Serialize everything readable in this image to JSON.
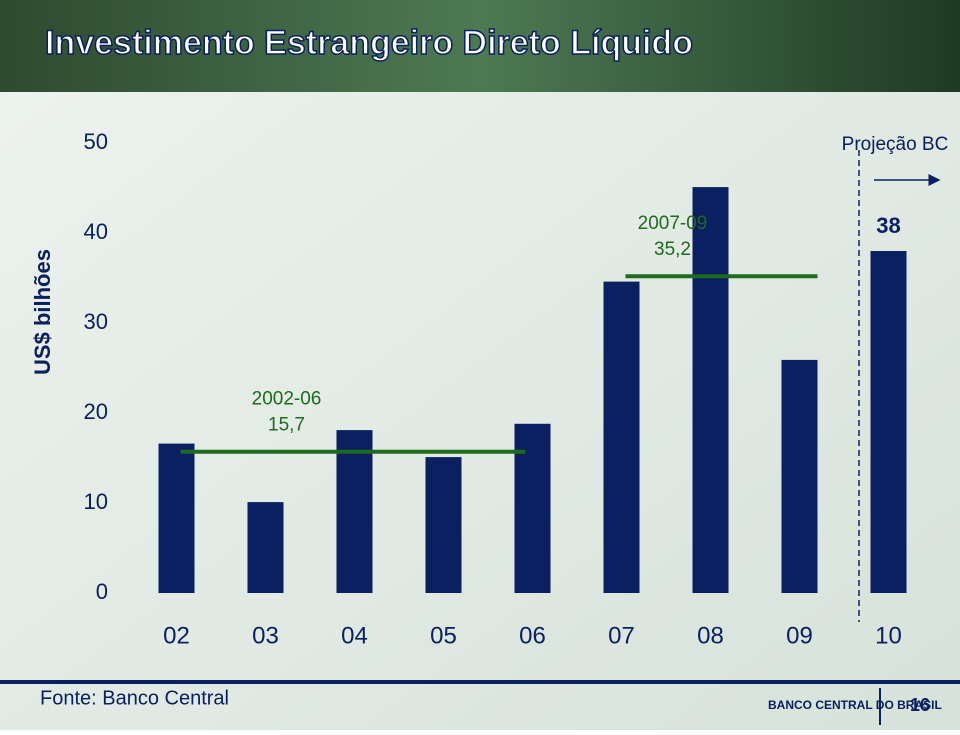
{
  "chart_data": {
    "type": "bar",
    "title": "Investimento Estrangeiro Direto Líquido",
    "y_label": "US$ bilhões",
    "categories": [
      "02",
      "03",
      "04",
      "05",
      "06",
      "07",
      "08",
      "09",
      "10"
    ],
    "values": [
      16.6,
      10.1,
      18.1,
      15.1,
      18.8,
      34.6,
      45.1,
      25.9,
      38
    ],
    "value_labels": [
      null,
      null,
      null,
      null,
      null,
      null,
      null,
      null,
      "38"
    ],
    "color": "#0a2060",
    "ylim": [
      0,
      50
    ],
    "yticks": [
      0,
      10,
      20,
      30,
      40,
      50
    ],
    "averages": [
      {
        "period": "2002-06",
        "label": "15,7",
        "value": 15.7,
        "from": "02",
        "to": "06"
      },
      {
        "period": "2007-09",
        "label": "35,2",
        "value": 35.2,
        "from": "07",
        "to": "09"
      }
    ],
    "average_color": "#1e6a1e",
    "projection_label": "Projeção BC",
    "projection_from": "10"
  },
  "footer": {
    "source": "Fonte: Banco Central",
    "logo": "BANCO CENTRAL DO BRASIL",
    "page": "16"
  }
}
